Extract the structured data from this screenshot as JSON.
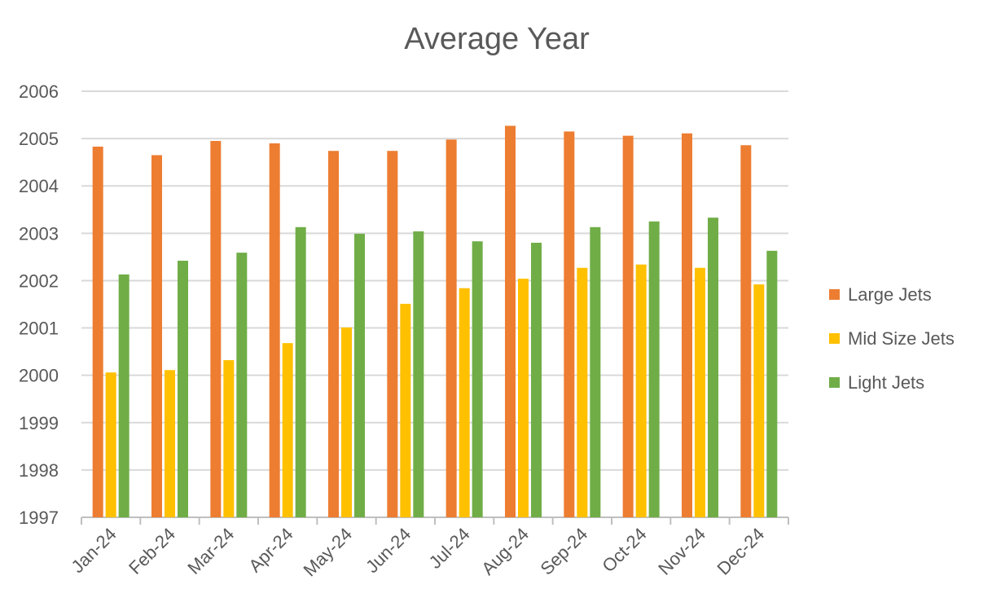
{
  "chart_data": {
    "type": "bar",
    "title": "Average Year",
    "xlabel": "",
    "ylabel": "",
    "ylim": [
      1997,
      2006
    ],
    "yticks": [
      "1997",
      "1998",
      "1999",
      "2000",
      "2001",
      "2002",
      "2003",
      "2004",
      "2005",
      "2006"
    ],
    "grid": true,
    "legend_position": "right",
    "categories": [
      "Jan-24",
      "Feb-24",
      "Mar-24",
      "Apr-24",
      "May-24",
      "Jun-24",
      "Jul-24",
      "Aug-24",
      "Sep-24",
      "Oct-24",
      "Nov-24",
      "Dec-24"
    ],
    "series": [
      {
        "name": "Large Jets",
        "color": "#ED7D31",
        "values": [
          2004.83,
          2004.65,
          2004.95,
          2004.9,
          2004.74,
          2004.74,
          2004.98,
          2005.27,
          2005.15,
          2005.06,
          2005.11,
          2004.86
        ]
      },
      {
        "name": "Mid Size Jets",
        "color": "#FFC000",
        "values": [
          2000.06,
          2000.11,
          2000.32,
          2000.68,
          2001.01,
          2001.51,
          2001.84,
          2002.04,
          2002.27,
          2002.34,
          2002.27,
          2001.92
        ]
      },
      {
        "name": "Light Jets",
        "color": "#70AD47",
        "values": [
          2002.13,
          2002.42,
          2002.59,
          2003.13,
          2002.99,
          2003.04,
          2002.83,
          2002.8,
          2003.13,
          2003.25,
          2003.33,
          2002.63
        ]
      }
    ]
  }
}
